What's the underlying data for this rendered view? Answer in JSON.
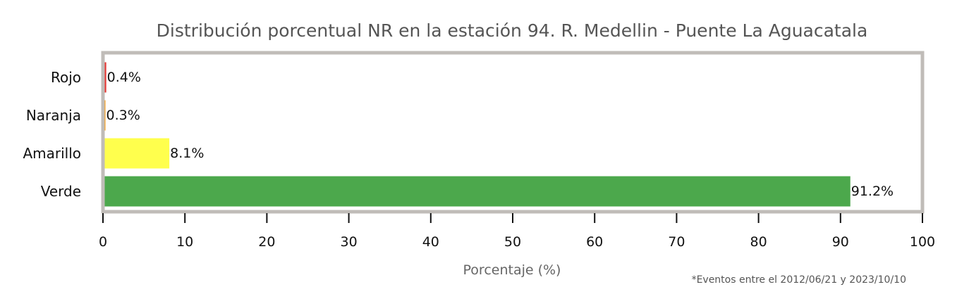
{
  "chart_data": {
    "type": "bar",
    "orientation": "horizontal",
    "title": "Distribución porcentual NR en la estación 94. R. Medellin - Puente La Aguacatala",
    "xlabel": "Porcentaje (%)",
    "ylabel": "",
    "xlim": [
      0,
      100
    ],
    "xticks": [
      0,
      10,
      20,
      30,
      40,
      50,
      60,
      70,
      80,
      90,
      100
    ],
    "categories": [
      "Rojo",
      "Naranja",
      "Amarillo",
      "Verde"
    ],
    "values": [
      0.4,
      0.3,
      8.1,
      91.2
    ],
    "value_labels": [
      "0.4%",
      "0.3%",
      "8.1%",
      "91.2%"
    ],
    "colors": [
      "#e53935",
      "#ff9800",
      "#ffff4d",
      "#4ca84c"
    ],
    "grid": false,
    "legend": "none",
    "footnote": "*Eventos entre el 2012/06/21 y 2023/10/10",
    "frame_color": "#c0bcb8"
  }
}
